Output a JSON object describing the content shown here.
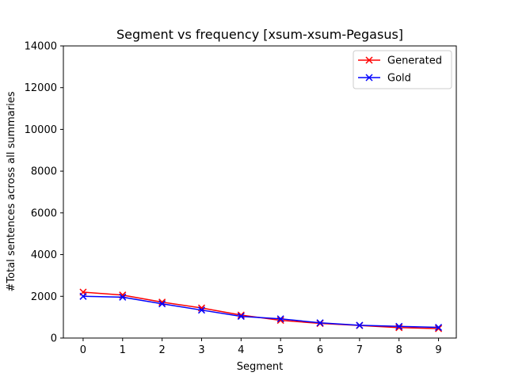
{
  "chart_data": {
    "type": "line",
    "title": "Segment vs frequency [xsum-xsum-Pegasus]",
    "xlabel": "Segment",
    "ylabel": "#Total sentences across all summaries",
    "x": [
      0,
      1,
      2,
      3,
      4,
      5,
      6,
      7,
      8,
      9
    ],
    "xlim": [
      -0.5,
      9.45
    ],
    "ylim": [
      0,
      14000
    ],
    "yticks": [
      0,
      2000,
      4000,
      6000,
      8000,
      10000,
      12000,
      14000
    ],
    "ytick_labels": [
      "0",
      "2000",
      "4000",
      "6000",
      "8000",
      "10000",
      "12000",
      "14000"
    ],
    "xtick_labels": [
      "0",
      "1",
      "2",
      "3",
      "4",
      "5",
      "6",
      "7",
      "8",
      "9"
    ],
    "grid": false,
    "legend_position": "top-right",
    "series": [
      {
        "name": "Generated",
        "color": "#ff0000",
        "marker": "x",
        "values": [
          2200,
          2060,
          1720,
          1440,
          1100,
          850,
          700,
          600,
          500,
          450
        ]
      },
      {
        "name": "Gold",
        "color": "#0000ff",
        "marker": "x",
        "values": [
          2000,
          1960,
          1640,
          1340,
          1040,
          920,
          730,
          610,
          560,
          510
        ]
      }
    ]
  }
}
